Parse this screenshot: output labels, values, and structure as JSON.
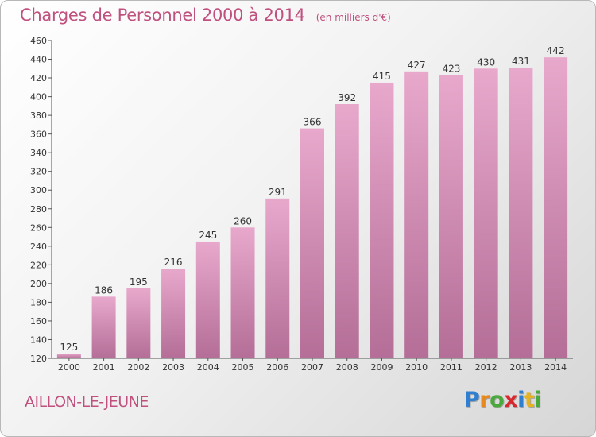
{
  "header": {
    "title": "Charges de Personnel 2000 à 2014",
    "subtitle": "(en milliers d'€)"
  },
  "footer": {
    "commune": "AILLON-LE-JEUNE",
    "logo_letters": [
      "P",
      "r",
      "o",
      "x",
      "i",
      "t",
      "i"
    ],
    "logo_colors": [
      "#2f7fd0",
      "#e68a1f",
      "#4aa83c",
      "#d9272e",
      "#2f7fd0",
      "#e6b31f",
      "#4aa83c"
    ]
  },
  "colors": {
    "bar_top": "#e8a8cc",
    "bar_bottom": "#b46e97",
    "text": "#c0507e"
  },
  "chart_data": {
    "type": "bar",
    "categories": [
      "2000",
      "2001",
      "2002",
      "2003",
      "2004",
      "2005",
      "2006",
      "2007",
      "2008",
      "2009",
      "2010",
      "2011",
      "2012",
      "2013",
      "2014"
    ],
    "values": [
      125,
      186,
      195,
      216,
      245,
      260,
      291,
      366,
      392,
      415,
      427,
      423,
      430,
      431,
      442
    ],
    "title": "Charges de Personnel 2000 à 2014",
    "xlabel": "",
    "ylabel": "",
    "ylim": [
      120,
      460
    ],
    "yticks": [
      120,
      140,
      160,
      180,
      200,
      220,
      240,
      260,
      280,
      300,
      320,
      340,
      360,
      380,
      400,
      420,
      440,
      460
    ],
    "grid": false,
    "data_labels": true
  }
}
